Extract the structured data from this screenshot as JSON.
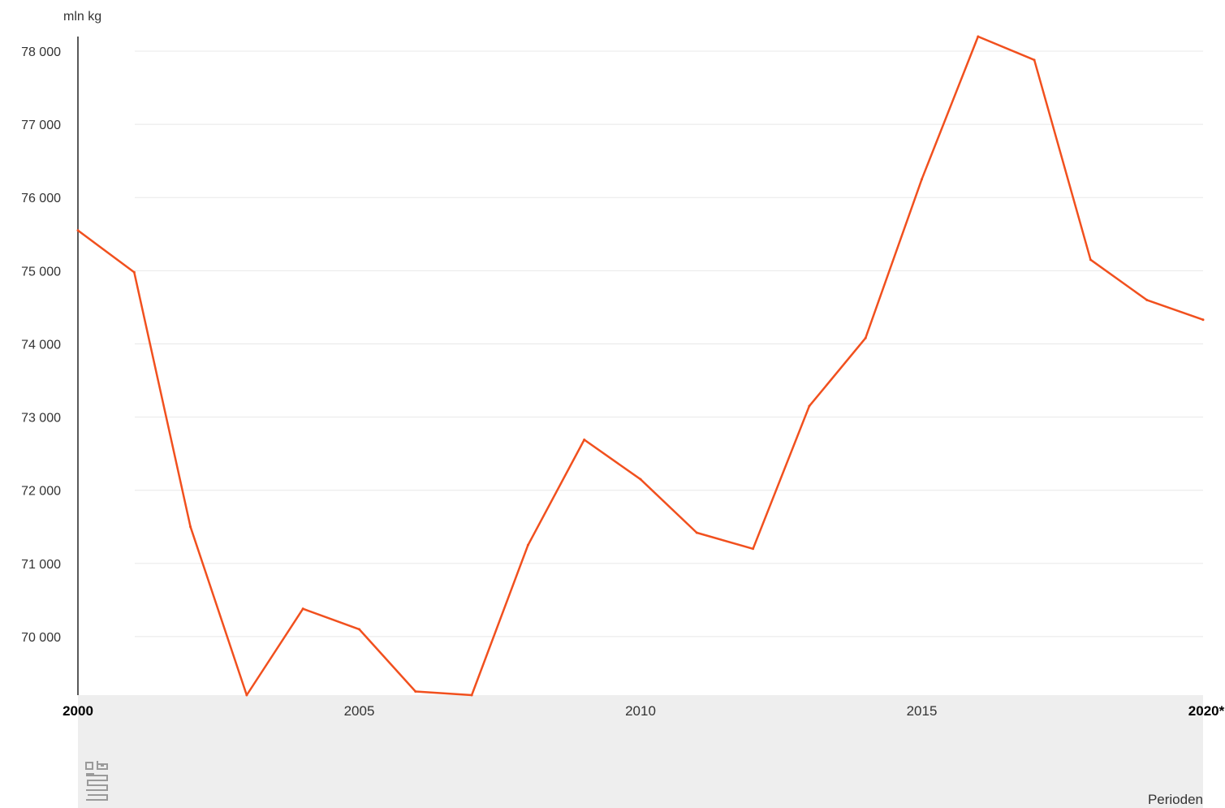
{
  "chart_data": {
    "type": "line",
    "unit_label": "mln kg",
    "xlabel": "Perioden",
    "x": [
      "2000",
      "2001",
      "2002",
      "2003",
      "2004",
      "2005",
      "2006",
      "2007",
      "2008",
      "2009",
      "2010",
      "2011",
      "2012",
      "2013",
      "2014",
      "2015",
      "2016",
      "2017",
      "2018",
      "2019",
      "2020*"
    ],
    "series": [
      {
        "color": "#f1501e",
        "values": [
          75550,
          74980,
          71500,
          69200,
          70380,
          70100,
          69250,
          69200,
          71250,
          72690,
          72150,
          71420,
          71200,
          73150,
          74080,
          76250,
          78200,
          77880,
          75150,
          74600,
          74330
        ]
      }
    ],
    "yticks": [
      "70 000",
      "71 000",
      "72 000",
      "73 000",
      "74 000",
      "75 000",
      "76 000",
      "77 000",
      "78 000"
    ],
    "ytick_values": [
      70000,
      71000,
      72000,
      73000,
      74000,
      75000,
      76000,
      77000,
      78000
    ],
    "ylim": [
      69200,
      78200
    ],
    "xticks": [
      {
        "label": "2000",
        "index": 0,
        "bold": true
      },
      {
        "label": "2005",
        "index": 5,
        "bold": false
      },
      {
        "label": "2010",
        "index": 10,
        "bold": false
      },
      {
        "label": "2015",
        "index": 15,
        "bold": false
      },
      {
        "label": "2020*",
        "index": 20,
        "bold": true
      }
    ],
    "grid": true,
    "colors": {
      "line": "#f1501e",
      "grid": "#e8e8e8",
      "axis": "#222222",
      "band": "#eeeeee"
    }
  },
  "logo": {
    "name": "cbs-logo",
    "text": "cbs"
  }
}
